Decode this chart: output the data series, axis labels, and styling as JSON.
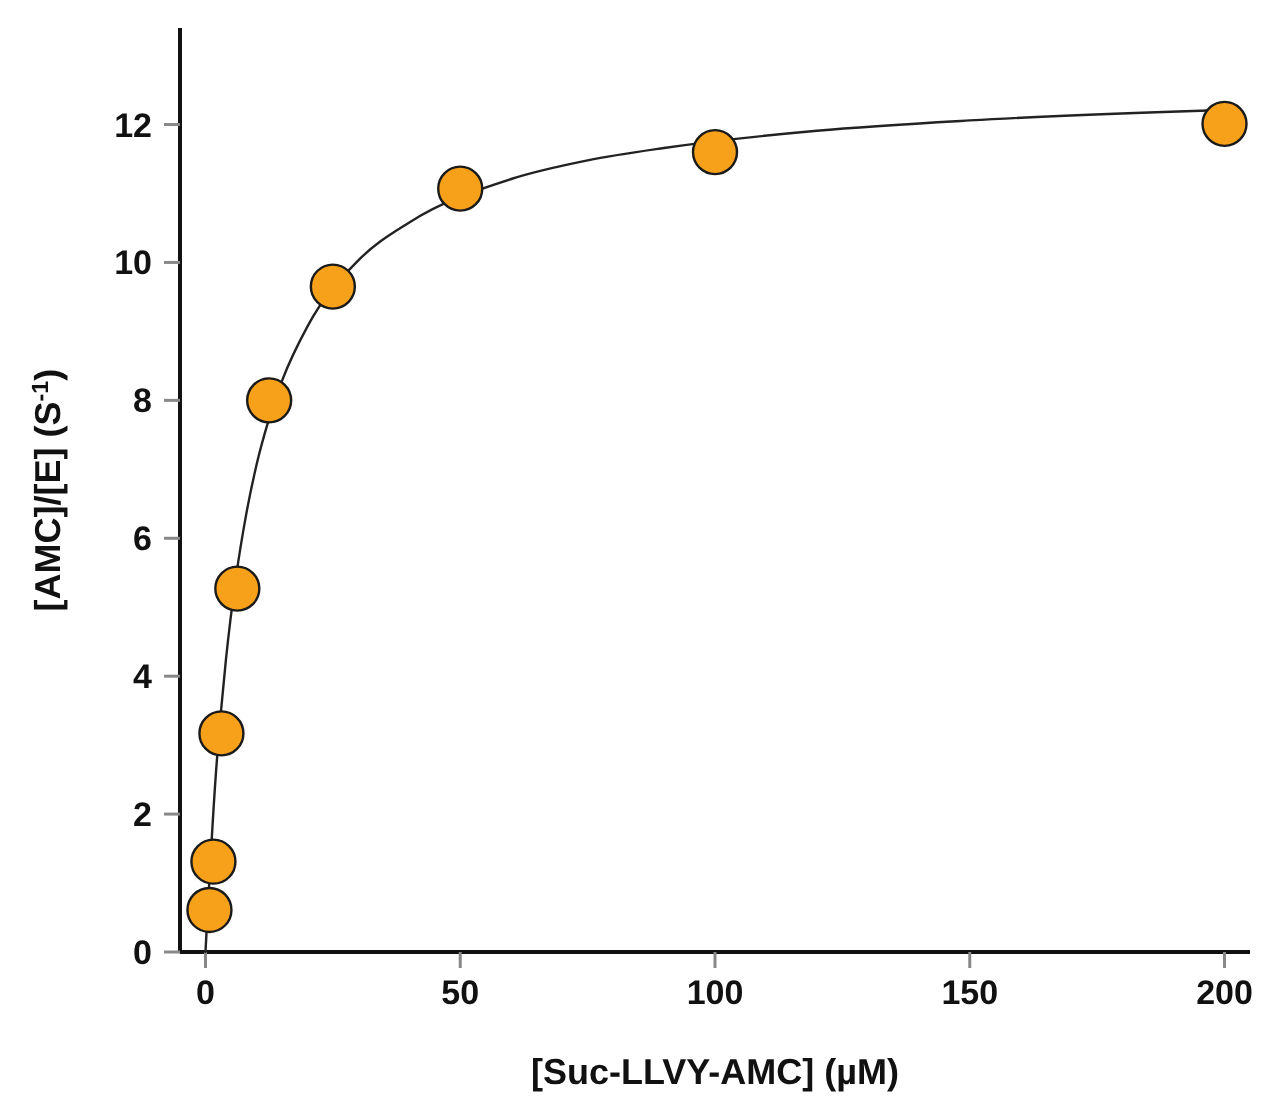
{
  "chart_data": {
    "type": "scatter",
    "xlabel": "[Suc-LLVY-AMC] (µM)",
    "ylabel": "[AMC]/[E] (S$^{-1}$)",
    "xlim": [
      -5,
      205
    ],
    "xticks": [
      0,
      50,
      100,
      150,
      200
    ],
    "ylim": [
      0,
      13.4
    ],
    "yticks": [
      0,
      2,
      4,
      6,
      8,
      10,
      12
    ],
    "grid": false,
    "marker": "circle",
    "series": [
      {
        "type": "line",
        "color": "#222222",
        "line_style": "solid",
        "marker": "none",
        "x": [
          0,
          2,
          3,
          4,
          6,
          8,
          10,
          12.5,
          15,
          20,
          30,
          40,
          60,
          75,
          90,
          120,
          150,
          200
        ],
        "values": [
          0,
          2.54,
          3.46,
          4.23,
          5.44,
          6.35,
          7.06,
          7.74,
          8.28,
          9.07,
          10.03,
          10.58,
          11.21,
          11.48,
          11.66,
          11.91,
          12.06,
          12.21
        ]
      },
      {
        "color": "#f7a11a",
        "x": [
          0.78,
          1.56,
          3.13,
          6.25,
          12.5,
          25,
          50,
          100,
          200
        ],
        "values": [
          0.61,
          1.31,
          3.17,
          5.27,
          8.0,
          9.65,
          11.07,
          11.6,
          12.01
        ]
      }
    ]
  }
}
